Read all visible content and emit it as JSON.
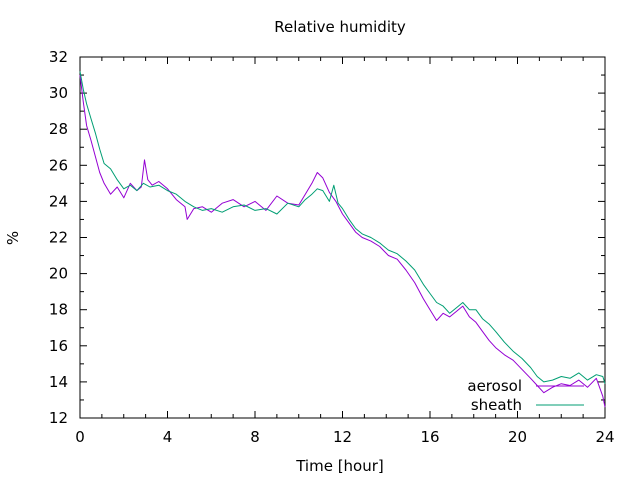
{
  "chart_data": {
    "type": "line",
    "title": "Relative humidity",
    "xlabel": "Time [hour]",
    "ylabel": "%",
    "xlim": [
      0,
      24
    ],
    "ylim": [
      12,
      32
    ],
    "xticks": [
      "0",
      "4",
      "8",
      "12",
      "16",
      "20",
      "24"
    ],
    "yticks": [
      "12",
      "14",
      "16",
      "18",
      "20",
      "22",
      "24",
      "26",
      "28",
      "30",
      "32"
    ],
    "grid": false,
    "legend_position": "bottom-right",
    "series": [
      {
        "name": "aerosol",
        "color": "#9400d3",
        "x": [
          0,
          0.15,
          0.3,
          0.5,
          0.7,
          0.9,
          1.1,
          1.4,
          1.7,
          2.0,
          2.3,
          2.6,
          2.8,
          2.95,
          3.1,
          3.3,
          3.6,
          4.0,
          4.4,
          4.8,
          4.9,
          5.2,
          5.6,
          6.0,
          6.5,
          7.0,
          7.5,
          8.0,
          8.5,
          9.0,
          9.5,
          10.0,
          10.3,
          10.6,
          10.85,
          11.1,
          11.4,
          11.7,
          12.0,
          12.3,
          12.6,
          12.9,
          13.3,
          13.7,
          14.1,
          14.5,
          14.9,
          15.3,
          15.7,
          16.0,
          16.3,
          16.6,
          16.9,
          17.2,
          17.5,
          17.8,
          18.1,
          18.4,
          18.7,
          19.0,
          19.4,
          19.8,
          20.2,
          20.6,
          20.9,
          21.2,
          21.6,
          22.0,
          22.4,
          22.8,
          23.2,
          23.6,
          23.9,
          24.0
        ],
        "y": [
          31.0,
          29.5,
          28.2,
          27.4,
          26.5,
          25.6,
          25.0,
          24.4,
          24.8,
          24.2,
          25.0,
          24.6,
          24.8,
          26.3,
          25.2,
          24.9,
          25.1,
          24.7,
          24.1,
          23.7,
          23.0,
          23.6,
          23.7,
          23.4,
          23.9,
          24.1,
          23.7,
          24.0,
          23.5,
          24.3,
          23.9,
          23.8,
          24.4,
          25.0,
          25.6,
          25.3,
          24.5,
          24.0,
          23.3,
          22.8,
          22.3,
          22.0,
          21.8,
          21.5,
          21.0,
          20.8,
          20.2,
          19.5,
          18.6,
          18.0,
          17.4,
          17.8,
          17.6,
          17.9,
          18.2,
          17.6,
          17.3,
          16.8,
          16.3,
          15.9,
          15.5,
          15.2,
          14.7,
          14.2,
          13.8,
          13.4,
          13.7,
          13.9,
          13.8,
          14.1,
          13.7,
          14.2,
          13.2,
          12.6
        ]
      },
      {
        "name": "sheath",
        "color": "#009e73",
        "x": [
          0,
          0.15,
          0.3,
          0.5,
          0.7,
          0.9,
          1.1,
          1.4,
          1.7,
          2.0,
          2.3,
          2.6,
          2.9,
          3.2,
          3.6,
          4.0,
          4.4,
          4.8,
          5.2,
          5.6,
          6.0,
          6.5,
          7.0,
          7.5,
          8.0,
          8.5,
          9.0,
          9.5,
          10.0,
          10.3,
          10.6,
          10.85,
          11.1,
          11.4,
          11.6,
          11.8,
          12.0,
          12.3,
          12.6,
          12.9,
          13.3,
          13.7,
          14.1,
          14.5,
          14.9,
          15.3,
          15.7,
          16.0,
          16.3,
          16.6,
          16.9,
          17.2,
          17.5,
          17.8,
          18.1,
          18.4,
          18.7,
          19.0,
          19.4,
          19.8,
          20.2,
          20.6,
          20.9,
          21.2,
          21.6,
          22.0,
          22.4,
          22.8,
          23.2,
          23.6,
          23.9,
          24.0
        ],
        "y": [
          31.2,
          30.2,
          29.4,
          28.6,
          27.8,
          26.9,
          26.1,
          25.8,
          25.2,
          24.7,
          24.9,
          24.6,
          25.0,
          24.8,
          24.9,
          24.6,
          24.4,
          24.0,
          23.7,
          23.5,
          23.6,
          23.4,
          23.7,
          23.8,
          23.5,
          23.6,
          23.3,
          23.9,
          23.7,
          24.1,
          24.4,
          24.7,
          24.6,
          24.0,
          24.9,
          23.9,
          23.6,
          23.0,
          22.5,
          22.2,
          22.0,
          21.7,
          21.3,
          21.1,
          20.7,
          20.2,
          19.4,
          18.9,
          18.4,
          18.2,
          17.8,
          18.1,
          18.4,
          18.0,
          18.0,
          17.5,
          17.2,
          16.8,
          16.2,
          15.7,
          15.3,
          14.8,
          14.3,
          14.0,
          14.1,
          14.3,
          14.2,
          14.5,
          14.1,
          14.4,
          14.3,
          13.9
        ]
      }
    ]
  }
}
